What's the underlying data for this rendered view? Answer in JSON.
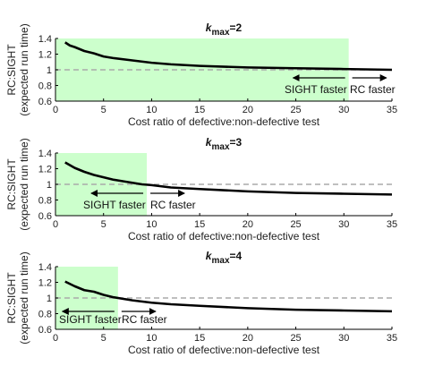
{
  "chart_data": [
    {
      "type": "line",
      "title_main": "k",
      "title_sub": "max",
      "title_value": "=2",
      "xlabel": "Cost ratio of defective:non-defective test",
      "ylabel_line1": "RC:SIGHT",
      "ylabel_line2": "(expected run time)",
      "xlim": [
        0,
        35
      ],
      "ylim": [
        0.6,
        1.4
      ],
      "xticks": [
        "0",
        "5",
        "10",
        "15",
        "20",
        "25",
        "30",
        "35"
      ],
      "yticks": [
        "0.6",
        "0.8",
        "1",
        "1.2",
        "1.4"
      ],
      "reference_line": 1,
      "shaded_region_x": [
        0,
        30.5
      ],
      "shaded_color": "#ccffcc",
      "annotation_left": "SIGHT faster",
      "annotation_right": "RC faster",
      "series": [
        {
          "x": [
            1,
            1.5,
            2,
            3,
            4,
            5,
            6,
            8,
            10,
            12,
            15,
            20,
            25,
            30,
            35
          ],
          "y": [
            1.35,
            1.31,
            1.29,
            1.24,
            1.21,
            1.17,
            1.15,
            1.12,
            1.09,
            1.07,
            1.05,
            1.03,
            1.02,
            1.01,
            1.0
          ]
        }
      ]
    },
    {
      "type": "line",
      "title_main": "k",
      "title_sub": "max",
      "title_value": "=3",
      "xlabel": "Cost ratio of defective:non-defective test",
      "ylabel_line1": "RC:SIGHT",
      "ylabel_line2": "(expected run time)",
      "xlim": [
        0,
        35
      ],
      "ylim": [
        0.6,
        1.4
      ],
      "xticks": [
        "0",
        "5",
        "10",
        "15",
        "20",
        "25",
        "30",
        "35"
      ],
      "yticks": [
        "0.6",
        "0.8",
        "1",
        "1.2",
        "1.4"
      ],
      "reference_line": 1,
      "shaded_region_x": [
        0,
        9.5
      ],
      "shaded_color": "#ccffcc",
      "annotation_left": "SIGHT faster",
      "annotation_right": "RC faster",
      "series": [
        {
          "x": [
            1,
            2,
            3,
            4,
            5,
            6,
            7,
            8,
            9,
            10,
            12,
            15,
            20,
            25,
            30,
            35
          ],
          "y": [
            1.28,
            1.21,
            1.16,
            1.12,
            1.09,
            1.06,
            1.04,
            1.02,
            1.0,
            0.99,
            0.96,
            0.94,
            0.91,
            0.89,
            0.88,
            0.87
          ]
        }
      ]
    },
    {
      "type": "line",
      "title_main": "k",
      "title_sub": "max",
      "title_value": "=4",
      "xlabel": "Cost ratio of defective:non-defective test",
      "ylabel_line1": "RC:SIGHT",
      "ylabel_line2": "(expected run time)",
      "xlim": [
        0,
        35
      ],
      "ylim": [
        0.6,
        1.4
      ],
      "xticks": [
        "0",
        "5",
        "10",
        "15",
        "20",
        "25",
        "30",
        "35"
      ],
      "yticks": [
        "0.6",
        "0.8",
        "1",
        "1.2",
        "1.4"
      ],
      "reference_line": 1,
      "shaded_region_x": [
        0,
        6.5
      ],
      "shaded_color": "#ccffcc",
      "annotation_left": "SIGHT faster",
      "annotation_right": "RC faster",
      "series": [
        {
          "x": [
            1,
            2,
            3,
            4,
            5,
            6,
            7,
            8,
            10,
            12,
            15,
            20,
            25,
            30,
            35
          ],
          "y": [
            1.21,
            1.15,
            1.1,
            1.08,
            1.04,
            1.01,
            0.99,
            0.97,
            0.94,
            0.92,
            0.9,
            0.87,
            0.85,
            0.84,
            0.83
          ]
        }
      ]
    }
  ]
}
